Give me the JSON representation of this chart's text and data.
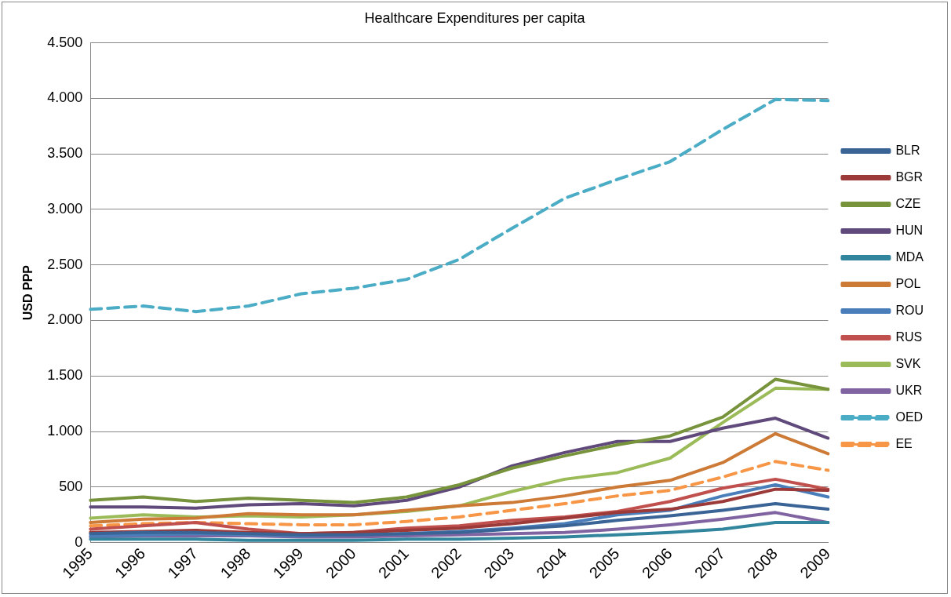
{
  "chart_data": {
    "type": "line",
    "title": "Healthcare Expenditures per capita",
    "ylabel": "USD PPP",
    "categories": [
      "1995",
      "1996",
      "1997",
      "1998",
      "1999",
      "2000",
      "2001",
      "2002",
      "2003",
      "2004",
      "2005",
      "2006",
      "2007",
      "2008",
      "2009"
    ],
    "ylim": [
      0,
      4500
    ],
    "yticks": [
      {
        "value": 0,
        "label": "0"
      },
      {
        "value": 500,
        "label": "500"
      },
      {
        "value": 1000,
        "label": "1.000"
      },
      {
        "value": 1500,
        "label": "1.500"
      },
      {
        "value": 2000,
        "label": "2.000"
      },
      {
        "value": 2500,
        "label": "2.500"
      },
      {
        "value": 3000,
        "label": "3.000"
      },
      {
        "value": 3500,
        "label": "3.500"
      },
      {
        "value": 4000,
        "label": "4.000"
      },
      {
        "value": 4500,
        "label": "4.500"
      }
    ],
    "grid": "y",
    "legend": "right",
    "marker": "none",
    "series": [
      {
        "name": "BLR",
        "color": "#3b6496",
        "line_style": "solid",
        "values": [
          80,
          90,
          90,
          80,
          70,
          70,
          80,
          90,
          120,
          150,
          200,
          240,
          290,
          350,
          300
        ]
      },
      {
        "name": "BGR",
        "color": "#9b3a38",
        "line_style": "solid",
        "values": [
          90,
          100,
          110,
          90,
          80,
          90,
          110,
          130,
          170,
          220,
          270,
          300,
          370,
          480,
          470
        ]
      },
      {
        "name": "CZE",
        "color": "#77933c",
        "line_style": "solid",
        "values": [
          380,
          410,
          370,
          400,
          380,
          360,
          410,
          520,
          670,
          780,
          880,
          960,
          1130,
          1470,
          1380
        ]
      },
      {
        "name": "HUN",
        "color": "#604a7b",
        "line_style": "solid",
        "values": [
          320,
          320,
          310,
          340,
          350,
          330,
          380,
          500,
          690,
          810,
          910,
          910,
          1030,
          1120,
          940
        ]
      },
      {
        "name": "MDA",
        "color": "#31859c",
        "line_style": "solid",
        "values": [
          30,
          30,
          30,
          20,
          20,
          20,
          30,
          30,
          40,
          50,
          70,
          90,
          120,
          180,
          180
        ]
      },
      {
        "name": "POL",
        "color": "#cc7a36",
        "line_style": "solid",
        "values": [
          180,
          210,
          220,
          260,
          250,
          250,
          290,
          330,
          360,
          420,
          500,
          560,
          720,
          980,
          800
        ]
      },
      {
        "name": "ROU",
        "color": "#4a7ebb",
        "line_style": "solid",
        "values": [
          60,
          70,
          80,
          70,
          60,
          70,
          80,
          100,
          130,
          170,
          250,
          290,
          420,
          520,
          410
        ]
      },
      {
        "name": "RUS",
        "color": "#c0504d",
        "line_style": "solid",
        "values": [
          120,
          150,
          180,
          120,
          80,
          90,
          130,
          150,
          200,
          230,
          280,
          370,
          490,
          570,
          480
        ]
      },
      {
        "name": "SVK",
        "color": "#9bbb59",
        "line_style": "solid",
        "values": [
          220,
          250,
          230,
          240,
          230,
          250,
          280,
          330,
          460,
          570,
          630,
          760,
          1080,
          1390,
          1380
        ]
      },
      {
        "name": "UKR",
        "color": "#8064a2",
        "line_style": "solid",
        "values": [
          50,
          60,
          60,
          60,
          50,
          50,
          60,
          70,
          80,
          90,
          120,
          160,
          210,
          270,
          180
        ]
      },
      {
        "name": "OED",
        "color": "#4bacc6",
        "line_style": "dashed",
        "values": [
          2100,
          2130,
          2080,
          2130,
          2240,
          2290,
          2370,
          2550,
          2830,
          3100,
          3270,
          3430,
          3720,
          3990,
          3980
        ]
      },
      {
        "name": "EE",
        "color": "#f79646",
        "line_style": "dashed",
        "values": [
          150,
          170,
          180,
          170,
          160,
          160,
          190,
          230,
          290,
          350,
          420,
          470,
          590,
          730,
          650
        ]
      }
    ]
  }
}
